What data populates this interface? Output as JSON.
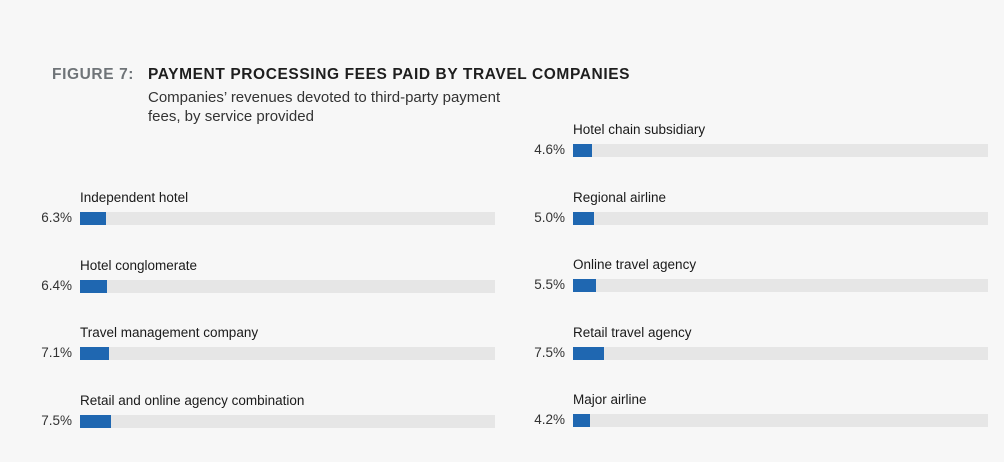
{
  "figure": {
    "label": "FIGURE 7:",
    "title": "PAYMENT PROCESSING FEES PAID BY TRAVEL COMPANIES",
    "subtitle": "Companies’ revenues devoted to third-party payment fees, by service provided"
  },
  "colors": {
    "bar": "#1f67b1",
    "track": "#e6e6e6"
  },
  "chart_data": {
    "type": "bar",
    "orientation": "horizontal",
    "title": "PAYMENT PROCESSING FEES PAID BY TRAVEL COMPANIES",
    "subtitle": "Companies’ revenues devoted to third-party payment fees, by service provided",
    "xlim": [
      0,
      100
    ],
    "grid": false,
    "columns": [
      {
        "items": [
          {
            "label": "Independent hotel",
            "value": 6.3,
            "value_label": "6.3%"
          },
          {
            "label": "Hotel conglomerate",
            "value": 6.4,
            "value_label": "6.4%"
          },
          {
            "label": "Travel management company",
            "value": 7.1,
            "value_label": "7.1%"
          },
          {
            "label": "Retail and online agency combination",
            "value": 7.5,
            "value_label": "7.5%"
          }
        ]
      },
      {
        "items": [
          {
            "label": "Hotel chain subsidiary",
            "value": 4.6,
            "value_label": "4.6%"
          },
          {
            "label": "Regional airline",
            "value": 5.0,
            "value_label": "5.0%"
          },
          {
            "label": "Online travel agency",
            "value": 5.5,
            "value_label": "5.5%"
          },
          {
            "label": "Retail travel agency",
            "value": 7.5,
            "value_label": "7.5%"
          },
          {
            "label": "Major airline",
            "value": 4.2,
            "value_label": "4.2%"
          }
        ]
      }
    ]
  }
}
